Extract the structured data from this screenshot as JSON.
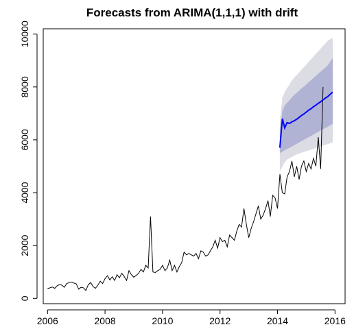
{
  "chart_data": {
    "type": "line",
    "title": "Forecasts from ARIMA(1,1,1) with drift",
    "xlabel": "",
    "ylabel": "",
    "xlim": [
      2005.85,
      2016.35
    ],
    "ylim": [
      -200,
      10200
    ],
    "x_ticks": [
      2006,
      2008,
      2010,
      2012,
      2014,
      2016
    ],
    "x_tick_labels": [
      "2006",
      "2008",
      "2010",
      "2012",
      "2014",
      "2016"
    ],
    "y_ticks": [
      0,
      2000,
      4000,
      6000,
      8000,
      10000
    ],
    "y_tick_labels": [
      "0",
      "2000",
      "4000",
      "6000",
      "8000",
      "10000"
    ],
    "grid": false,
    "colors": {
      "history": "#000000",
      "forecast": "#0000ff",
      "band80": "#b0b3d4",
      "band95": "#dcdce4"
    },
    "history": {
      "x_start": 2006.0,
      "step": 0.083333,
      "values": [
        370,
        400,
        430,
        380,
        480,
        520,
        500,
        420,
        560,
        600,
        620,
        580,
        550,
        350,
        420,
        400,
        300,
        520,
        600,
        450,
        380,
        500,
        650,
        560,
        750,
        860,
        700,
        820,
        680,
        900,
        780,
        950,
        830,
        680,
        1050,
        900,
        800,
        870,
        950,
        1100,
        1000,
        1250,
        1150,
        3100,
        1000,
        980,
        1050,
        1100,
        1250,
        1050,
        1150,
        1450,
        1050,
        1250,
        1000,
        1200,
        1350,
        1750,
        1650,
        1700,
        1650,
        1600,
        1700,
        1500,
        1800,
        1750,
        1600,
        1650,
        1800,
        1950,
        2200,
        1900,
        2300,
        2150,
        2200,
        1950,
        2400,
        2300,
        2200,
        2550,
        2800,
        2700,
        3400,
        2800,
        2300,
        2650,
        2900,
        3200,
        3500,
        3000,
        3150,
        3400,
        3700,
        3100,
        3900,
        3800,
        3400,
        4700,
        4000,
        3950,
        4600,
        4800,
        5200,
        4600,
        5000,
        4500,
        5000,
        5200,
        4800,
        5100,
        4900,
        5300,
        5000,
        6100,
        4900,
        8000
      ]
    },
    "forecast": {
      "x": [
        2014.08,
        2014.17,
        2014.25,
        2014.33,
        2014.42,
        2014.5,
        2014.58,
        2014.67,
        2014.75,
        2014.83,
        2014.92,
        2015.0,
        2015.08,
        2015.17,
        2015.25,
        2015.33,
        2015.42,
        2015.5,
        2015.58,
        2015.67,
        2015.75,
        2015.83,
        2015.92
      ],
      "mean": [
        5700,
        6800,
        6450,
        6650,
        6620,
        6680,
        6720,
        6780,
        6850,
        6920,
        6980,
        7050,
        7120,
        7180,
        7250,
        7310,
        7380,
        7440,
        7510,
        7580,
        7640,
        7720,
        7800
      ],
      "lo80": [
        5500,
        5550,
        5600,
        5650,
        5700,
        5750,
        5800,
        5850,
        5900,
        5950,
        6000,
        6050,
        6100,
        6150,
        6200,
        6250,
        6300,
        6350,
        6400,
        6450,
        6500,
        6550,
        6600
      ],
      "hi80": [
        6300,
        7100,
        7300,
        7400,
        7500,
        7600,
        7700,
        7780,
        7860,
        7940,
        8020,
        8100,
        8180,
        8260,
        8340,
        8420,
        8500,
        8580,
        8660,
        8740,
        8820,
        8950,
        9100
      ],
      "lo95": [
        4800,
        5000,
        5150,
        5250,
        5300,
        5350,
        5400,
        5450,
        5480,
        5510,
        5540,
        5570,
        5600,
        5630,
        5660,
        5690,
        5720,
        5750,
        5780,
        5810,
        5840,
        5870,
        5900
      ],
      "hi95": [
        6700,
        7600,
        7800,
        7950,
        8100,
        8250,
        8350,
        8450,
        8550,
        8650,
        8750,
        8850,
        8950,
        9050,
        9150,
        9250,
        9350,
        9450,
        9550,
        9650,
        9750,
        9800,
        9850
      ]
    }
  }
}
